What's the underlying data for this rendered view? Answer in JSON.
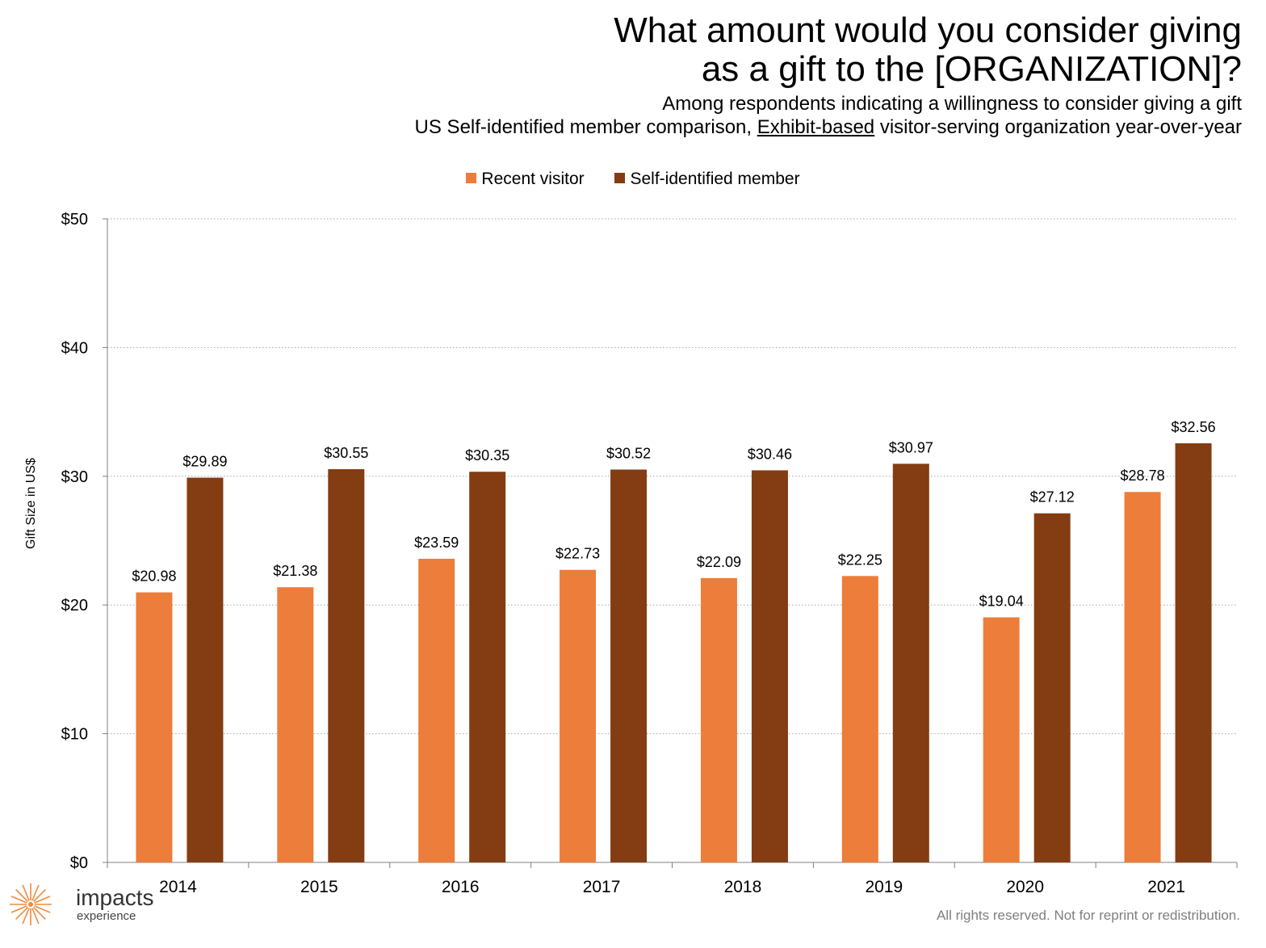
{
  "title": {
    "line1": "What amount would you consider giving",
    "line2": "as a gift to the [ORGANIZATION]?"
  },
  "subtitle": {
    "line1": "Among respondents indicating a willingness to consider giving a gift",
    "line2_prefix": "US Self-identified member comparison,",
    "line2_underlined": "Exhibit-based",
    "line2_suffix": "visitor-serving organization year-over-year"
  },
  "colors": {
    "recent_visitor": "#ED7D3A",
    "member": "#843C12",
    "grid": "#A6A6A6",
    "axis": "#808080",
    "logo": "#F08A3C"
  },
  "chart_data": {
    "type": "bar",
    "categories": [
      "2014",
      "2015",
      "2016",
      "2017",
      "2018",
      "2019",
      "2020",
      "2021"
    ],
    "series": [
      {
        "name": "Recent visitor",
        "values": [
          20.98,
          21.38,
          23.59,
          22.73,
          22.09,
          22.25,
          19.04,
          28.78
        ],
        "labels": [
          "$20.98",
          "$21.38",
          "$23.59",
          "$22.73",
          "$22.09",
          "$22.25",
          "$19.04",
          "$28.78"
        ]
      },
      {
        "name": "Self-identified member",
        "values": [
          29.89,
          30.55,
          30.35,
          30.52,
          30.46,
          30.97,
          27.12,
          32.56
        ],
        "labels": [
          "$29.89",
          "$30.55",
          "$30.35",
          "$30.52",
          "$30.46",
          "$30.97",
          "$27.12",
          "$32.56"
        ]
      }
    ],
    "ylabel": "Gift Size in US$",
    "xlabel": "",
    "ylim": [
      0,
      50
    ],
    "yticks": [
      0,
      10,
      20,
      30,
      40,
      50
    ],
    "ytick_labels": [
      "$0",
      "$10",
      "$20",
      "$30",
      "$40",
      "$50"
    ],
    "grid": true,
    "legend_position": "top-center"
  },
  "logo": {
    "word": "impacts",
    "sub": "experience"
  },
  "footer": "All rights reserved. Not for reprint or redistribution."
}
